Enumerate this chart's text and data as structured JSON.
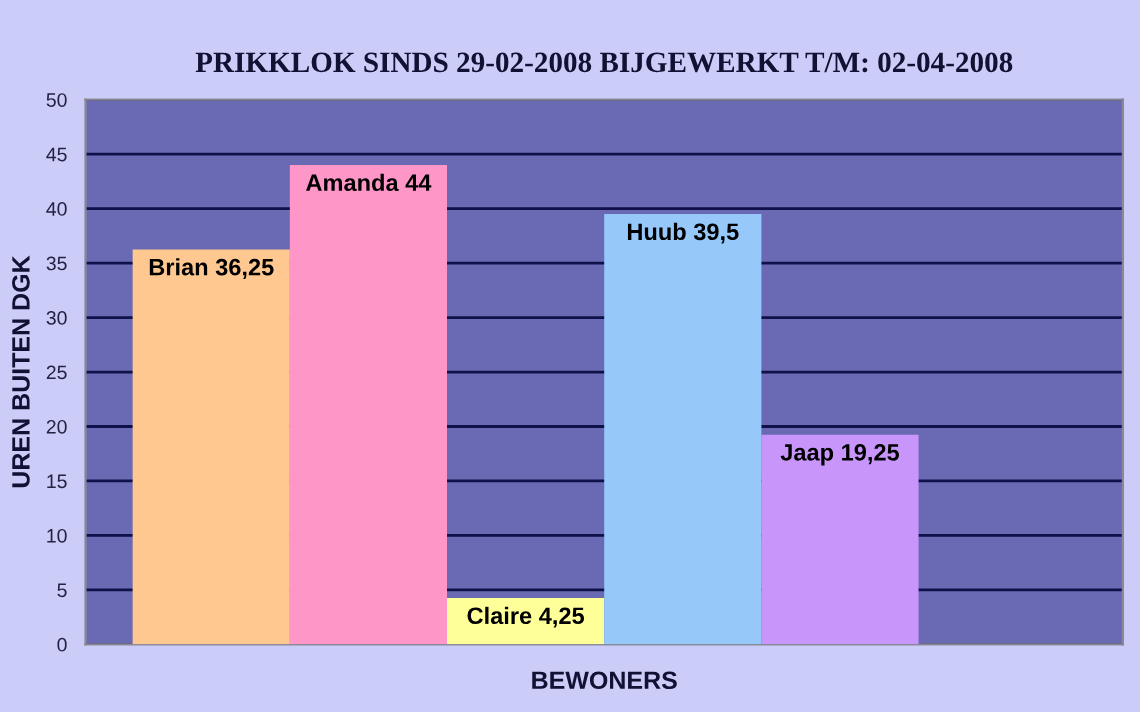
{
  "chart_data": {
    "type": "bar",
    "title": "PRIKKLOK SINDS 29-02-2008 BIJGEWERKT T/M: 02-04-2008",
    "xlabel": "BEWONERS",
    "ylabel": "UREN BUITEN DGK",
    "categories": [
      null,
      null,
      null,
      null,
      null
    ],
    "values": [
      36.25,
      44,
      4.25,
      39.5,
      19.25
    ],
    "colors": [
      "#ffc890",
      "#ff96c8",
      "#ffff9a",
      "#96c8fa",
      "#c896fa"
    ],
    "value_labels": [
      "Brian 36,25",
      "Amanda 44",
      "Claire 4,25",
      "Huub 39,5",
      "Jaap 19,25"
    ],
    "ylim": [
      0,
      50
    ],
    "yticks": [
      0,
      5,
      10,
      15,
      20,
      25,
      30,
      35,
      40,
      45,
      50
    ],
    "grid": "y",
    "legend": false
  }
}
